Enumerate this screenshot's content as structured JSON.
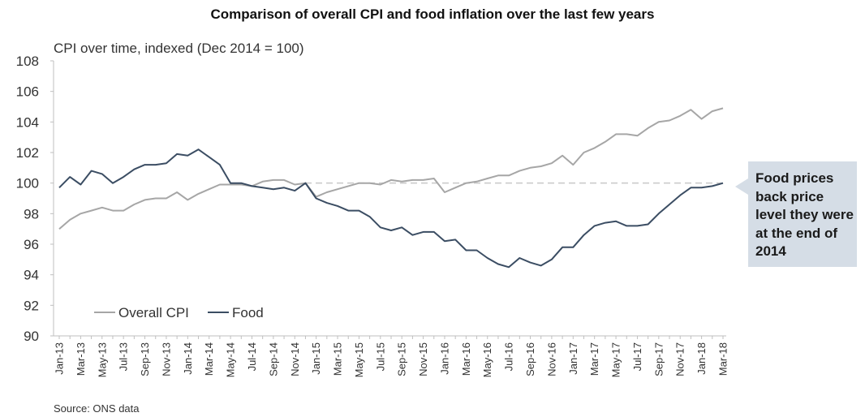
{
  "title": "Comparison of overall CPI and food inflation over the last few years",
  "subtitle": "CPI over time, indexed (Dec 2014 = 100)",
  "source": "Source: ONS data",
  "callout": "Food prices back price level they were at the end of 2014",
  "colors": {
    "cpi": "#a6a6a6",
    "food": "#3b4d63",
    "reference": "#c8c8c8",
    "callout_bg": "#d5dde6"
  },
  "chart_data": {
    "type": "line",
    "x": [
      "Jan-13",
      "Feb-13",
      "Mar-13",
      "Apr-13",
      "May-13",
      "Jun-13",
      "Jul-13",
      "Aug-13",
      "Sep-13",
      "Oct-13",
      "Nov-13",
      "Dec-13",
      "Jan-14",
      "Feb-14",
      "Mar-14",
      "Apr-14",
      "May-14",
      "Jun-14",
      "Jul-14",
      "Aug-14",
      "Sep-14",
      "Oct-14",
      "Nov-14",
      "Dec-14",
      "Jan-15",
      "Feb-15",
      "Mar-15",
      "Apr-15",
      "May-15",
      "Jun-15",
      "Jul-15",
      "Aug-15",
      "Sep-15",
      "Oct-15",
      "Nov-15",
      "Dec-15",
      "Jan-16",
      "Feb-16",
      "Mar-16",
      "Apr-16",
      "May-16",
      "Jun-16",
      "Jul-16",
      "Aug-16",
      "Sep-16",
      "Oct-16",
      "Nov-16",
      "Dec-16",
      "Jan-17",
      "Feb-17",
      "Mar-17",
      "Apr-17",
      "May-17",
      "Jun-17",
      "Jul-17",
      "Aug-17",
      "Sep-17",
      "Oct-17",
      "Nov-17",
      "Dec-17",
      "Jan-18",
      "Feb-18",
      "Mar-18"
    ],
    "tick_labels": [
      "Jan-13",
      "Mar-13",
      "May-13",
      "Jul-13",
      "Sep-13",
      "Nov-13",
      "Jan-14",
      "Mar-14",
      "May-14",
      "Jul-14",
      "Sep-14",
      "Nov-14",
      "Jan-15",
      "Mar-15",
      "May-15",
      "Jul-15",
      "Sep-15",
      "Nov-15",
      "Jan-16",
      "Mar-16",
      "May-16",
      "Jul-16",
      "Sep-16",
      "Nov-16",
      "Jan-17",
      "Mar-17",
      "May-17",
      "Jul-17",
      "Sep-17",
      "Nov-17",
      "Jan-18",
      "Mar-18"
    ],
    "ylim": [
      90,
      108
    ],
    "yticks": [
      90,
      92,
      94,
      96,
      98,
      100,
      102,
      104,
      106,
      108
    ],
    "reference_line": 100,
    "legend_position": "bottom-left",
    "series": [
      {
        "name": "Overall CPI",
        "values": [
          97.0,
          97.6,
          98.0,
          98.2,
          98.4,
          98.2,
          98.2,
          98.6,
          98.9,
          99.0,
          99.0,
          99.4,
          98.9,
          99.3,
          99.6,
          99.9,
          99.9,
          99.9,
          99.8,
          100.1,
          100.2,
          100.2,
          99.9,
          100.0,
          99.1,
          99.4,
          99.6,
          99.8,
          100.0,
          100.0,
          99.9,
          100.2,
          100.1,
          100.2,
          100.2,
          100.3,
          99.4,
          99.7,
          100.0,
          100.1,
          100.3,
          100.5,
          100.5,
          100.8,
          101.0,
          101.1,
          101.3,
          101.8,
          101.2,
          102.0,
          102.3,
          102.7,
          103.2,
          103.2,
          103.1,
          103.6,
          104.0,
          104.1,
          104.4,
          104.8,
          104.2,
          104.7,
          104.9
        ]
      },
      {
        "name": "Food",
        "values": [
          99.7,
          100.4,
          99.9,
          100.8,
          100.6,
          100.0,
          100.4,
          100.9,
          101.2,
          101.2,
          101.3,
          101.9,
          101.8,
          102.2,
          101.7,
          101.2,
          100.0,
          100.0,
          99.8,
          99.7,
          99.6,
          99.7,
          99.5,
          100.0,
          99.0,
          98.7,
          98.5,
          98.2,
          98.2,
          97.8,
          97.1,
          96.9,
          97.1,
          96.6,
          96.8,
          96.8,
          96.2,
          96.3,
          95.6,
          95.6,
          95.1,
          94.7,
          94.5,
          95.1,
          94.8,
          94.6,
          95.0,
          95.8,
          95.8,
          96.6,
          97.2,
          97.4,
          97.5,
          97.2,
          97.2,
          97.3,
          98.0,
          98.6,
          99.2,
          99.7,
          99.7,
          99.8,
          100.0
        ]
      }
    ]
  }
}
